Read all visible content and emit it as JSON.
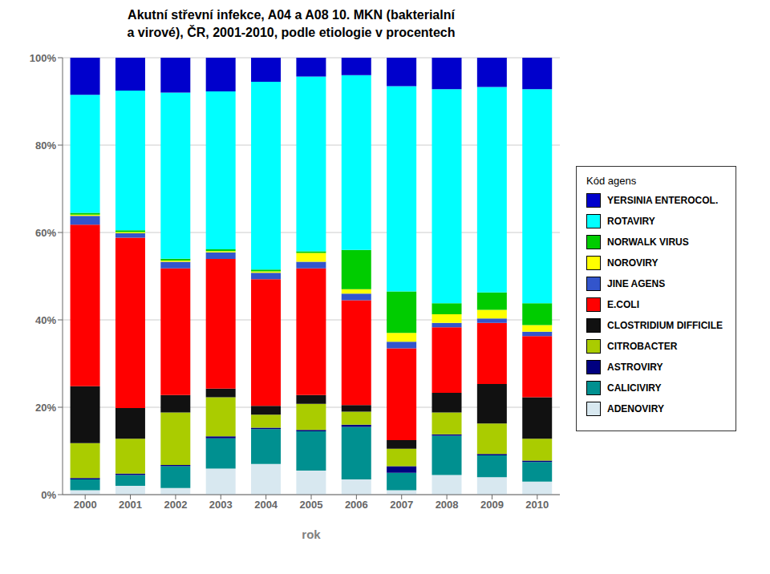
{
  "chart_data": {
    "type": "bar",
    "title": "Akutní střevní infekce, A04 a A08 10. MKN (bakterialní",
    "subtitle": "a virové), ČR, 2001-2010, podle etiologie v procentech",
    "x_label": "rok",
    "legend_title": "Kód agens",
    "categories": [
      "2000",
      "2001",
      "2002",
      "2003",
      "2004",
      "2005",
      "2006",
      "2007",
      "2008",
      "2009",
      "2010"
    ],
    "series": [
      {
        "name": "ADENOVIRY",
        "color": "#D8E8F0",
        "values": [
          0.01,
          0.02,
          0.015,
          0.05940594,
          0.07,
          0.055,
          0.035,
          0.01,
          0.045,
          0.04,
          0.03
        ]
      },
      {
        "name": "CALICIVIRY",
        "color": "#009090",
        "values": [
          0.025,
          0.025,
          0.05,
          0.06930693,
          0.08,
          0.09,
          0.12,
          0.04,
          0.09,
          0.05,
          0.045
        ]
      },
      {
        "name": "ASTROVIRY",
        "color": "#000080",
        "values": [
          0.003,
          0.003,
          0.003,
          0.004950495,
          0.003,
          0.003,
          0.005,
          0.015,
          0.003,
          0.003,
          0.003
        ]
      },
      {
        "name": "CITROBACTER",
        "color": "#AACC00",
        "values": [
          0.08,
          0.08,
          0.12,
          0.08910891,
          0.03,
          0.06,
          0.03,
          0.04,
          0.05,
          0.07,
          0.05
        ]
      },
      {
        "name": "CLOSTRIDIUM DIFFICILE",
        "color": "#111111",
        "values": [
          0.13,
          0.07,
          0.04,
          0.01980198,
          0.02,
          0.02,
          0.015,
          0.02,
          0.045,
          0.09,
          0.095
        ]
      },
      {
        "name": "E.COLI",
        "color": "#FF0000",
        "values": [
          0.37,
          0.39,
          0.29,
          0.2970297,
          0.29,
          0.29,
          0.24,
          0.21,
          0.15,
          0.14,
          0.14
        ]
      },
      {
        "name": "JINE AGENS",
        "color": "#3355CC",
        "values": [
          0.02,
          0.01,
          0.015,
          0.01485149,
          0.015,
          0.015,
          0.015,
          0.015,
          0.01,
          0.01,
          0.01
        ]
      },
      {
        "name": "NOROVIRY",
        "color": "#FFFF00",
        "values": [
          0.003,
          0.003,
          0.003,
          0.002970297,
          0.003,
          0.02,
          0.01,
          0.02,
          0.02,
          0.02,
          0.015
        ]
      },
      {
        "name": "NORWALK VIRUS",
        "color": "#00CC00",
        "values": [
          0.004,
          0.004,
          0.004,
          0.003960396,
          0.004,
          0.004,
          0.09,
          0.095,
          0.025,
          0.04,
          0.05
        ]
      },
      {
        "name": "ROTAVIRY",
        "color": "#00FFFF",
        "values": [
          0.27,
          0.32,
          0.38,
          0.3613861,
          0.43,
          0.4,
          0.4,
          0.47,
          0.49,
          0.47,
          0.49
        ]
      },
      {
        "name": "YERSINIA ENTEROCOL.",
        "color": "#0000CC",
        "values": [
          0.085,
          0.075,
          0.08,
          0.07722772,
          0.055,
          0.043,
          0.04,
          0.065,
          0.072,
          0.067,
          0.072
        ]
      }
    ],
    "stacked": true,
    "ylim": [
      0,
      1
    ],
    "yticks": [
      {
        "value": 0,
        "label": "0%"
      },
      {
        "value": 0.2,
        "label": "20%"
      },
      {
        "value": 0.4,
        "label": "40%"
      },
      {
        "value": 0.6,
        "label": "60%"
      },
      {
        "value": 0.8,
        "label": "80%"
      },
      {
        "value": 1,
        "label": "100%"
      }
    ],
    "grid": true,
    "legend": "right"
  }
}
